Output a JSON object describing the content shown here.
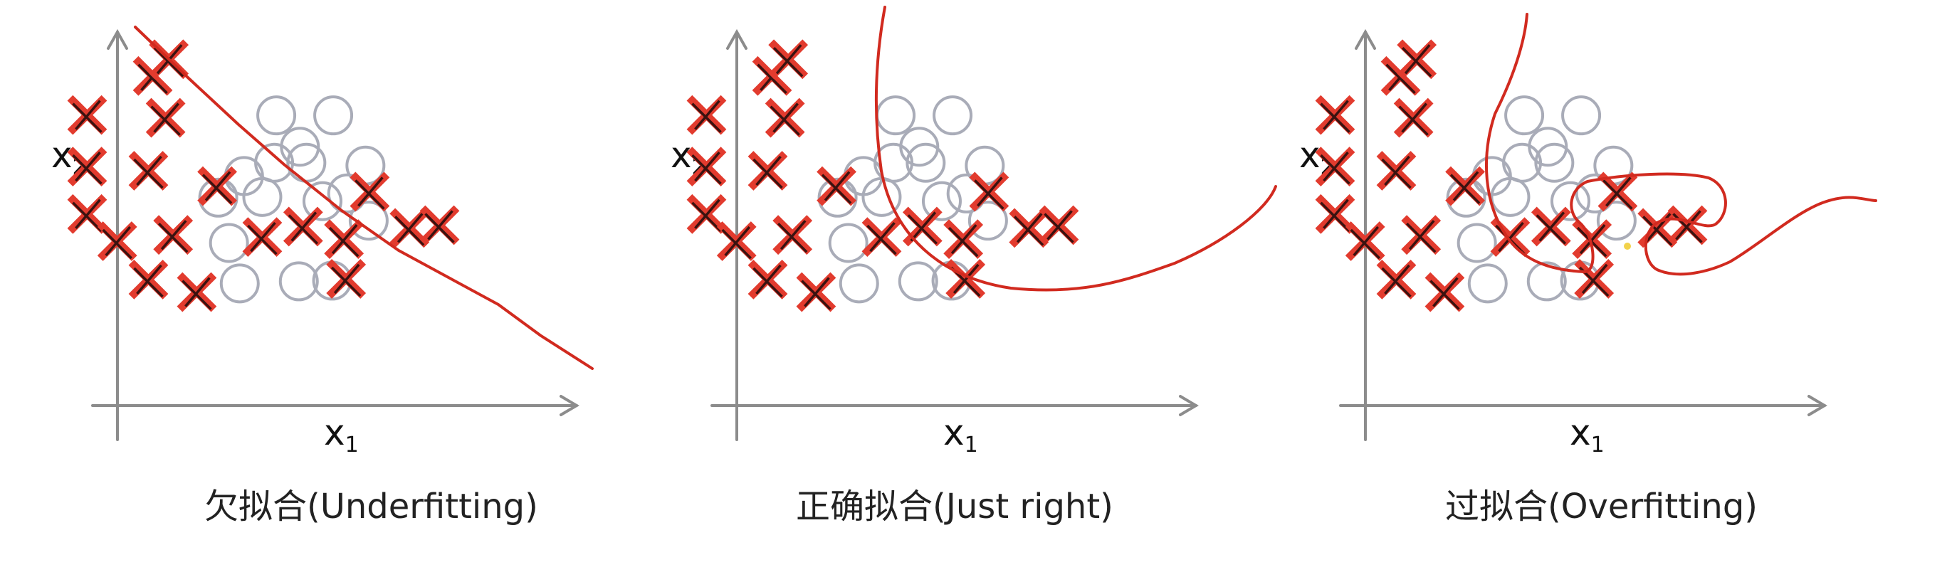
{
  "panels": [
    {
      "caption": "欠拟合(Underfitting)",
      "x_label": "x",
      "x_sub": "1",
      "y_label": "x",
      "y_sub": "2"
    },
    {
      "caption": "正确拟合(Just right)",
      "x_label": "x",
      "x_sub": "1",
      "y_label": "x",
      "y_sub": "2"
    },
    {
      "caption": "过拟合(Overfitting)",
      "x_label": "x",
      "x_sub": "1",
      "y_label": "x",
      "y_sub": "2"
    }
  ],
  "colors": {
    "cross": "#e23b2e",
    "circle": "#a9acb8",
    "boundary": "#d12a1f",
    "axis": "#8c8c8c"
  },
  "marker_legend": {
    "cross": "x-mark",
    "circle": "o-mark"
  }
}
